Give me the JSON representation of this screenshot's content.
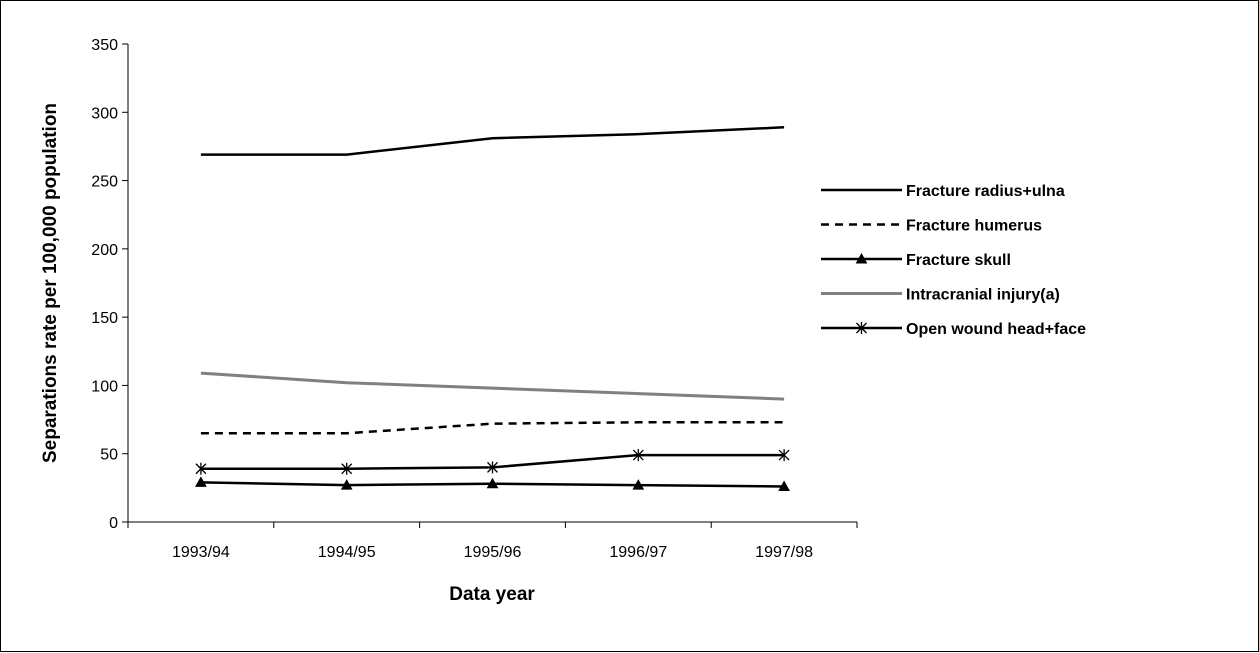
{
  "chart_data": {
    "type": "line",
    "xlabel": "Data year",
    "ylabel": "Separations rate per 100,000 population",
    "categories": [
      "1993/94",
      "1994/95",
      "1995/96",
      "1996/97",
      "1997/98"
    ],
    "ylim": [
      0,
      350
    ],
    "yticks": [
      0,
      50,
      100,
      150,
      200,
      250,
      300,
      350
    ],
    "grid": false,
    "legend_position": "right",
    "series": [
      {
        "name": "Fracture radius+ulna",
        "values": [
          269,
          269,
          281,
          284,
          289
        ],
        "color": "#000000",
        "style": "solid",
        "marker": "none"
      },
      {
        "name": "Fracture humerus",
        "values": [
          65,
          65,
          72,
          73,
          73
        ],
        "color": "#000000",
        "style": "dashed",
        "marker": "none"
      },
      {
        "name": "Fracture skull",
        "values": [
          29,
          27,
          28,
          27,
          26
        ],
        "color": "#000000",
        "style": "solid",
        "marker": "triangle"
      },
      {
        "name": "Intracranial injury(a)",
        "values": [
          109,
          102,
          98,
          94,
          90
        ],
        "color": "#808080",
        "style": "solid",
        "marker": "none"
      },
      {
        "name": "Open wound head+face",
        "values": [
          39,
          39,
          40,
          49,
          49
        ],
        "color": "#000000",
        "style": "solid",
        "marker": "asterisk"
      }
    ]
  }
}
